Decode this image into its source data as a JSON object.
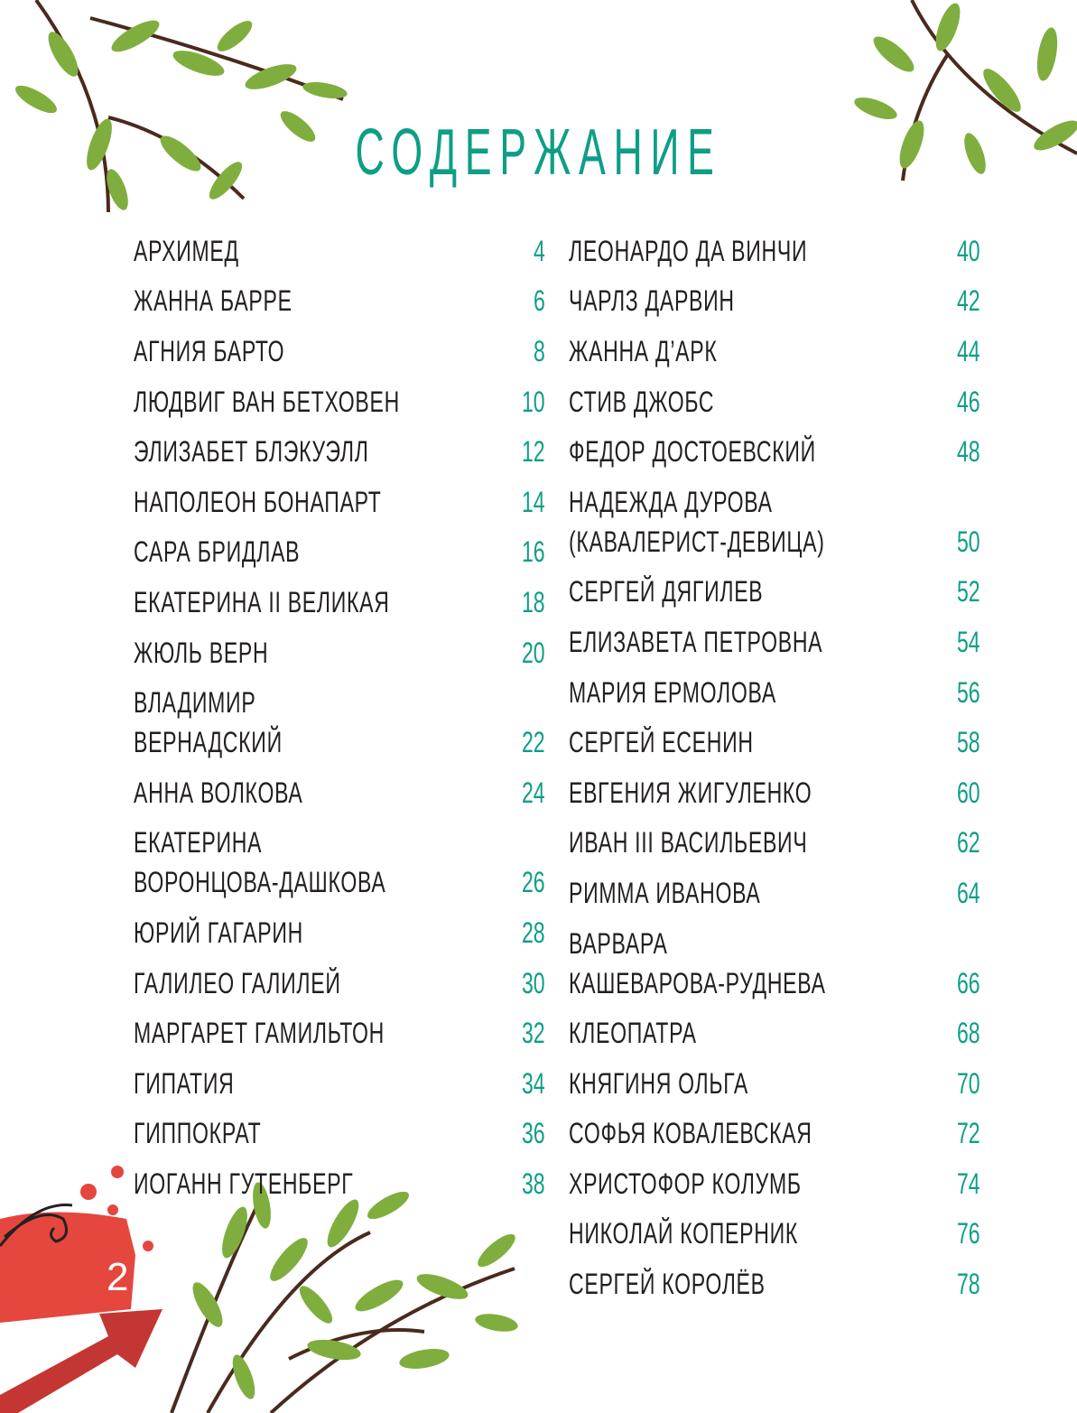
{
  "title": "СОДЕРЖАНИЕ",
  "page_number": "2",
  "colors": {
    "accent": "#0e9e86",
    "text": "#231f20",
    "splash": "#e5463e",
    "leaf": "#7fae3f"
  },
  "left": [
    {
      "name": "АРХИМЕД",
      "page": "4"
    },
    {
      "name": "ЖАННА БАРРЕ",
      "page": "6"
    },
    {
      "name": "АГНИЯ БАРТО",
      "page": "8"
    },
    {
      "name": "ЛЮДВИГ ВАН БЕТХОВЕН",
      "page": "10"
    },
    {
      "name": "ЭЛИЗАБЕТ БЛЭКУЭЛЛ",
      "page": "12"
    },
    {
      "name": "НАПОЛЕОН БОНАПАРТ",
      "page": "14"
    },
    {
      "name": "САРА БРИДЛАВ",
      "page": "16"
    },
    {
      "name": "ЕКАТЕРИНА II ВЕЛИКАЯ",
      "page": "18"
    },
    {
      "name": "ЖЮЛЬ ВЕРН",
      "page": "20"
    },
    {
      "name": "ВЛАДИМИР ВЕРНАДСКИЙ",
      "page": "22"
    },
    {
      "name": "АННА ВОЛКОВА",
      "page": "24"
    },
    {
      "name": "ЕКАТЕРИНА\nВОРОНЦОВА-ДАШКОВА",
      "page": "26"
    },
    {
      "name": "ЮРИЙ ГАГАРИН",
      "page": "28"
    },
    {
      "name": "ГАЛИЛЕО ГАЛИЛЕЙ",
      "page": "30"
    },
    {
      "name": "МАРГАРЕТ ГАМИЛЬТОН",
      "page": "32"
    },
    {
      "name": "ГИПАТИЯ",
      "page": "34"
    },
    {
      "name": "ГИППОКРАТ",
      "page": "36"
    },
    {
      "name": "ИОГАНН ГУТЕНБЕРГ",
      "page": "38"
    }
  ],
  "right": [
    {
      "name": "ЛЕОНАРДО ДА ВИНЧИ",
      "page": "40"
    },
    {
      "name": "ЧАРЛЗ ДАРВИН",
      "page": "42"
    },
    {
      "name": "ЖАННА Д’АРК",
      "page": "44"
    },
    {
      "name": "СТИВ ДЖОБС",
      "page": "46"
    },
    {
      "name": "ФЕДОР ДОСТОЕВСКИЙ",
      "page": "48"
    },
    {
      "name": "НАДЕЖДА ДУРОВА\n(КАВАЛЕРИСТ-ДЕВИЦА)",
      "page": "50"
    },
    {
      "name": "СЕРГЕЙ ДЯГИЛЕВ",
      "page": "52"
    },
    {
      "name": "ЕЛИЗАВЕТА ПЕТРОВНА",
      "page": "54"
    },
    {
      "name": "МАРИЯ ЕРМОЛОВА",
      "page": "56"
    },
    {
      "name": "СЕРГЕЙ ЕСЕНИН",
      "page": "58"
    },
    {
      "name": "ЕВГЕНИЯ ЖИГУЛЕНКО",
      "page": "60"
    },
    {
      "name": "ИВАН III ВАСИЛЬЕВИЧ",
      "page": "62"
    },
    {
      "name": "РИММА ИВАНОВА",
      "page": "64"
    },
    {
      "name": "ВАРВАРА\nКАШЕВАРОВА-РУДНЕВА",
      "page": "66"
    },
    {
      "name": "КЛЕОПАТРА",
      "page": "68"
    },
    {
      "name": "КНЯГИНЯ ОЛЬГА",
      "page": "70"
    },
    {
      "name": "СОФЬЯ КОВАЛЕВСКАЯ",
      "page": "72"
    },
    {
      "name": "ХРИСТОФОР КОЛУМБ",
      "page": "74"
    },
    {
      "name": "НИКОЛАЙ КОПЕРНИК",
      "page": "76"
    },
    {
      "name": "СЕРГЕЙ КОРОЛЁВ",
      "page": "78"
    }
  ]
}
